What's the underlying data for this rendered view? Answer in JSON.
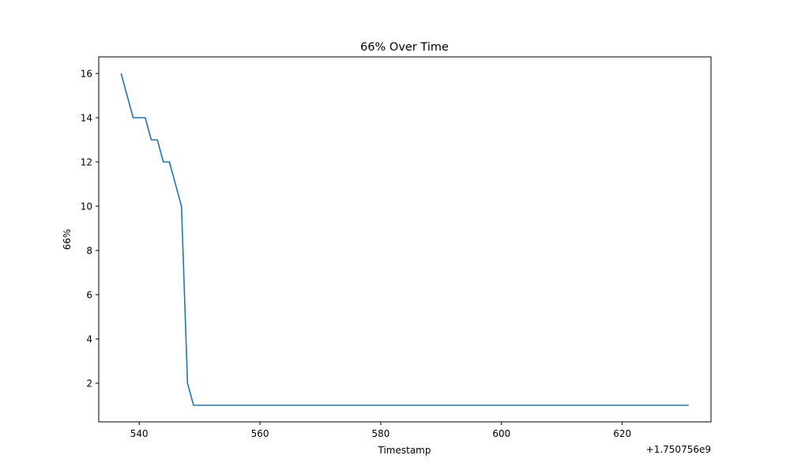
{
  "chart_data": {
    "type": "line",
    "title": "66% Over Time",
    "xlabel": "Timestamp",
    "ylabel": "66%",
    "x_offset_label": "+1.750756e9",
    "xlim": [
      533.3,
      634.7
    ],
    "ylim": [
      0.25,
      16.75
    ],
    "x_ticks": [
      540,
      560,
      580,
      600,
      620
    ],
    "y_ticks": [
      2,
      4,
      6,
      8,
      10,
      12,
      14,
      16
    ],
    "grid": false,
    "line_color": "#1f77b4",
    "series": [
      {
        "x": [
          537,
          538,
          539,
          540,
          541,
          542,
          543,
          544,
          545,
          546,
          547,
          548,
          549,
          631
        ],
        "values": [
          16,
          15,
          14,
          14,
          14,
          13,
          13,
          12,
          12,
          11,
          10,
          2,
          1,
          1
        ]
      }
    ]
  }
}
